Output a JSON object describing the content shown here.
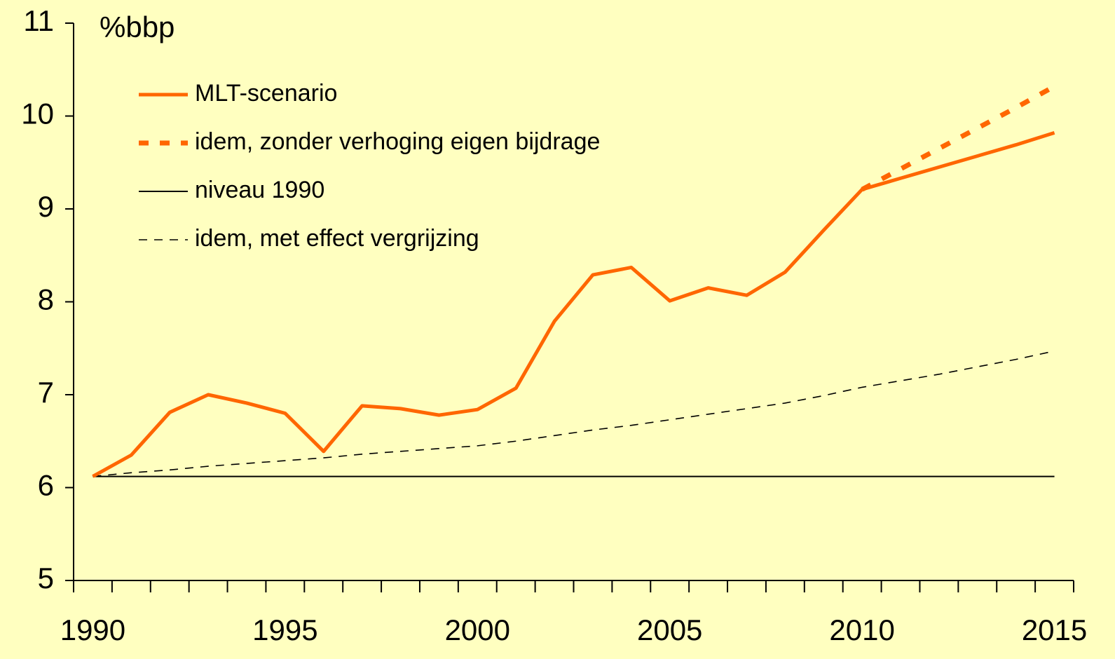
{
  "chart_data": {
    "type": "line",
    "y_axis_label": "%bbp",
    "categories": [
      "1990",
      null,
      null,
      null,
      null,
      "1995",
      null,
      null,
      null,
      null,
      "2000",
      null,
      null,
      null,
      null,
      "2005",
      null,
      null,
      null,
      null,
      "2010",
      null,
      null,
      null,
      null,
      "2015"
    ],
    "ylim": [
      5,
      11
    ],
    "yticks": [
      5,
      6,
      7,
      8,
      9,
      10,
      11
    ],
    "legend": "top-left",
    "series": [
      {
        "name": "MLT-scenario",
        "color": "#ff6600",
        "style": "solid",
        "width": 5,
        "values": [
          6.12,
          6.35,
          6.81,
          7.0,
          6.91,
          6.8,
          6.39,
          6.88,
          6.85,
          6.78,
          6.84,
          7.07,
          7.79,
          8.29,
          8.37,
          8.01,
          8.15,
          8.07,
          8.32,
          8.77,
          9.21,
          9.33,
          9.45,
          9.57,
          9.69,
          9.82
        ]
      },
      {
        "name": "idem, zonder verhoging eigen bijdrage",
        "color": "#ff6600",
        "style": "dotted",
        "width": 7,
        "values": [
          null,
          null,
          null,
          null,
          null,
          null,
          null,
          null,
          null,
          null,
          null,
          null,
          null,
          null,
          null,
          null,
          null,
          null,
          null,
          null,
          9.21,
          9.43,
          9.65,
          9.87,
          10.09,
          10.32
        ]
      },
      {
        "name": "niveau 1990",
        "color": "#000000",
        "style": "solid",
        "width": 2,
        "values": [
          6.12,
          6.12,
          6.12,
          6.12,
          6.12,
          6.12,
          6.12,
          6.12,
          6.12,
          6.12,
          6.12,
          6.12,
          6.12,
          6.12,
          6.12,
          6.12,
          6.12,
          6.12,
          6.12,
          6.12,
          6.12,
          6.12,
          6.12,
          6.12,
          6.12,
          6.12
        ]
      },
      {
        "name": "idem, met effect vergrijzing",
        "color": "#000000",
        "style": "dashed",
        "width": 1.6,
        "values": [
          6.12,
          6.16,
          6.19,
          6.23,
          6.26,
          6.29,
          6.32,
          6.36,
          6.39,
          6.42,
          6.45,
          6.5,
          6.56,
          6.62,
          6.67,
          6.73,
          6.79,
          6.85,
          6.91,
          6.99,
          7.08,
          7.15,
          7.22,
          7.3,
          7.38,
          7.47
        ]
      }
    ]
  }
}
